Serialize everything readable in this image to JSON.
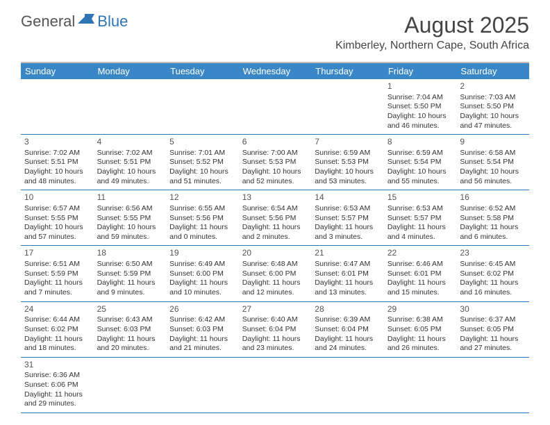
{
  "brand": {
    "part1": "General",
    "part2": "Blue"
  },
  "title": "August 2025",
  "location": "Kimberley, Northern Cape, South Africa",
  "colors": {
    "header_bg": "#3a87c7",
    "header_text": "#ffffff",
    "week_border": "#2e75b6",
    "top_rule": "#c0c0c0",
    "text": "#333333",
    "brand_gray": "#555555",
    "brand_blue": "#2e75b6"
  },
  "typography": {
    "title_fontsize": 32,
    "location_fontsize": 16,
    "dayheader_fontsize": 13,
    "cell_fontsize": 10.5,
    "daynum_fontsize": 12
  },
  "day_names": [
    "Sunday",
    "Monday",
    "Tuesday",
    "Wednesday",
    "Thursday",
    "Friday",
    "Saturday"
  ],
  "weeks": [
    [
      null,
      null,
      null,
      null,
      null,
      {
        "n": "1",
        "sr": "Sunrise: 7:04 AM",
        "ss": "Sunset: 5:50 PM",
        "dl": "Daylight: 10 hours and 46 minutes."
      },
      {
        "n": "2",
        "sr": "Sunrise: 7:03 AM",
        "ss": "Sunset: 5:50 PM",
        "dl": "Daylight: 10 hours and 47 minutes."
      }
    ],
    [
      {
        "n": "3",
        "sr": "Sunrise: 7:02 AM",
        "ss": "Sunset: 5:51 PM",
        "dl": "Daylight: 10 hours and 48 minutes."
      },
      {
        "n": "4",
        "sr": "Sunrise: 7:02 AM",
        "ss": "Sunset: 5:51 PM",
        "dl": "Daylight: 10 hours and 49 minutes."
      },
      {
        "n": "5",
        "sr": "Sunrise: 7:01 AM",
        "ss": "Sunset: 5:52 PM",
        "dl": "Daylight: 10 hours and 51 minutes."
      },
      {
        "n": "6",
        "sr": "Sunrise: 7:00 AM",
        "ss": "Sunset: 5:53 PM",
        "dl": "Daylight: 10 hours and 52 minutes."
      },
      {
        "n": "7",
        "sr": "Sunrise: 6:59 AM",
        "ss": "Sunset: 5:53 PM",
        "dl": "Daylight: 10 hours and 53 minutes."
      },
      {
        "n": "8",
        "sr": "Sunrise: 6:59 AM",
        "ss": "Sunset: 5:54 PM",
        "dl": "Daylight: 10 hours and 55 minutes."
      },
      {
        "n": "9",
        "sr": "Sunrise: 6:58 AM",
        "ss": "Sunset: 5:54 PM",
        "dl": "Daylight: 10 hours and 56 minutes."
      }
    ],
    [
      {
        "n": "10",
        "sr": "Sunrise: 6:57 AM",
        "ss": "Sunset: 5:55 PM",
        "dl": "Daylight: 10 hours and 57 minutes."
      },
      {
        "n": "11",
        "sr": "Sunrise: 6:56 AM",
        "ss": "Sunset: 5:55 PM",
        "dl": "Daylight: 10 hours and 59 minutes."
      },
      {
        "n": "12",
        "sr": "Sunrise: 6:55 AM",
        "ss": "Sunset: 5:56 PM",
        "dl": "Daylight: 11 hours and 0 minutes."
      },
      {
        "n": "13",
        "sr": "Sunrise: 6:54 AM",
        "ss": "Sunset: 5:56 PM",
        "dl": "Daylight: 11 hours and 2 minutes."
      },
      {
        "n": "14",
        "sr": "Sunrise: 6:53 AM",
        "ss": "Sunset: 5:57 PM",
        "dl": "Daylight: 11 hours and 3 minutes."
      },
      {
        "n": "15",
        "sr": "Sunrise: 6:53 AM",
        "ss": "Sunset: 5:57 PM",
        "dl": "Daylight: 11 hours and 4 minutes."
      },
      {
        "n": "16",
        "sr": "Sunrise: 6:52 AM",
        "ss": "Sunset: 5:58 PM",
        "dl": "Daylight: 11 hours and 6 minutes."
      }
    ],
    [
      {
        "n": "17",
        "sr": "Sunrise: 6:51 AM",
        "ss": "Sunset: 5:59 PM",
        "dl": "Daylight: 11 hours and 7 minutes."
      },
      {
        "n": "18",
        "sr": "Sunrise: 6:50 AM",
        "ss": "Sunset: 5:59 PM",
        "dl": "Daylight: 11 hours and 9 minutes."
      },
      {
        "n": "19",
        "sr": "Sunrise: 6:49 AM",
        "ss": "Sunset: 6:00 PM",
        "dl": "Daylight: 11 hours and 10 minutes."
      },
      {
        "n": "20",
        "sr": "Sunrise: 6:48 AM",
        "ss": "Sunset: 6:00 PM",
        "dl": "Daylight: 11 hours and 12 minutes."
      },
      {
        "n": "21",
        "sr": "Sunrise: 6:47 AM",
        "ss": "Sunset: 6:01 PM",
        "dl": "Daylight: 11 hours and 13 minutes."
      },
      {
        "n": "22",
        "sr": "Sunrise: 6:46 AM",
        "ss": "Sunset: 6:01 PM",
        "dl": "Daylight: 11 hours and 15 minutes."
      },
      {
        "n": "23",
        "sr": "Sunrise: 6:45 AM",
        "ss": "Sunset: 6:02 PM",
        "dl": "Daylight: 11 hours and 16 minutes."
      }
    ],
    [
      {
        "n": "24",
        "sr": "Sunrise: 6:44 AM",
        "ss": "Sunset: 6:02 PM",
        "dl": "Daylight: 11 hours and 18 minutes."
      },
      {
        "n": "25",
        "sr": "Sunrise: 6:43 AM",
        "ss": "Sunset: 6:03 PM",
        "dl": "Daylight: 11 hours and 20 minutes."
      },
      {
        "n": "26",
        "sr": "Sunrise: 6:42 AM",
        "ss": "Sunset: 6:03 PM",
        "dl": "Daylight: 11 hours and 21 minutes."
      },
      {
        "n": "27",
        "sr": "Sunrise: 6:40 AM",
        "ss": "Sunset: 6:04 PM",
        "dl": "Daylight: 11 hours and 23 minutes."
      },
      {
        "n": "28",
        "sr": "Sunrise: 6:39 AM",
        "ss": "Sunset: 6:04 PM",
        "dl": "Daylight: 11 hours and 24 minutes."
      },
      {
        "n": "29",
        "sr": "Sunrise: 6:38 AM",
        "ss": "Sunset: 6:05 PM",
        "dl": "Daylight: 11 hours and 26 minutes."
      },
      {
        "n": "30",
        "sr": "Sunrise: 6:37 AM",
        "ss": "Sunset: 6:05 PM",
        "dl": "Daylight: 11 hours and 27 minutes."
      }
    ],
    [
      {
        "n": "31",
        "sr": "Sunrise: 6:36 AM",
        "ss": "Sunset: 6:06 PM",
        "dl": "Daylight: 11 hours and 29 minutes."
      },
      null,
      null,
      null,
      null,
      null,
      null
    ]
  ]
}
